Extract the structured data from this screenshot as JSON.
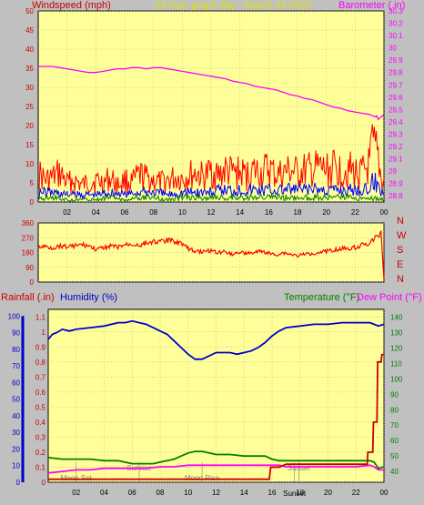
{
  "header": {
    "left_label": "Windspeed (mph)",
    "center_label": "24 hour graph day - March 03 2020",
    "right_label": "Barometer (.in)"
  },
  "colors": {
    "background": "#c0c0c0",
    "plot_bg": "#ffff99",
    "axis_dark": "#000000",
    "grid": "#a0a0a0",
    "wind_gust": "#ff0000",
    "wind_avg": "#0000ff",
    "wind_low": "#008000",
    "barometer": "#ff00ff",
    "direction": "#ff0000",
    "rainfall": "#cc0000",
    "humidity": "#0000cc",
    "temperature": "#008000",
    "dewpoint": "#ff00ff",
    "astro": "#808080",
    "left_red": "#cc0000",
    "left_blue": "#0000cc"
  },
  "chart_data": [
    {
      "type": "line",
      "name": "wind-barometer",
      "title": "24 hour graph day - March 03 2020",
      "ylabel": "Windspeed (mph)",
      "y2label": "Barometer (.in)",
      "x_ticks": [
        "02",
        "04",
        "06",
        "08",
        "10",
        "12",
        "14",
        "16",
        "18",
        "20",
        "22",
        "00"
      ],
      "x_range": [
        0,
        24
      ],
      "y_ticks": [
        0,
        5,
        10,
        15,
        20,
        25,
        30,
        35,
        40,
        45,
        50
      ],
      "y_range": [
        0,
        50
      ],
      "y2_ticks": [
        "28.8",
        "28.9",
        "29",
        "29.1",
        "29.2",
        "29.3",
        "29.4",
        "29.5",
        "29.6",
        "29.7",
        "29.8",
        "29.9",
        "30",
        "30.1",
        "30.2",
        "30.3"
      ],
      "y2_range": [
        28.75,
        30.3
      ],
      "grid": true,
      "series": [
        {
          "name": "Barometer (.in)",
          "axis": "right",
          "x": [
            0,
            0.5,
            1,
            1.5,
            2,
            2.5,
            3,
            3.5,
            4,
            4.5,
            5,
            5.5,
            6,
            6.5,
            7,
            7.5,
            8,
            8.5,
            9,
            9.5,
            10,
            10.5,
            11,
            11.5,
            12,
            12.5,
            13,
            13.5,
            14,
            14.5,
            15,
            15.5,
            16,
            16.5,
            17,
            17.5,
            18,
            18.5,
            19,
            19.5,
            20,
            20.5,
            21,
            21.5,
            22,
            22.5,
            23,
            23.2,
            23.4,
            23.5,
            23.6,
            23.8,
            24
          ],
          "y": [
            29.85,
            29.85,
            29.85,
            29.84,
            29.83,
            29.82,
            29.81,
            29.8,
            29.8,
            29.81,
            29.82,
            29.83,
            29.83,
            29.84,
            29.84,
            29.83,
            29.84,
            29.84,
            29.83,
            29.82,
            29.81,
            29.8,
            29.79,
            29.78,
            29.77,
            29.76,
            29.75,
            29.73,
            29.72,
            29.71,
            29.69,
            29.68,
            29.67,
            29.66,
            29.64,
            29.62,
            29.61,
            29.59,
            29.58,
            29.56,
            29.54,
            29.52,
            29.51,
            29.49,
            29.48,
            29.47,
            29.46,
            29.45,
            29.44,
            29.45,
            29.42,
            29.44,
            29.46
          ]
        },
        {
          "name": "gust",
          "axis": "left",
          "x": [
            0,
            0.5,
            1,
            1.5,
            2,
            2.5,
            3,
            3.5,
            4,
            4.5,
            5,
            5.5,
            6,
            6.5,
            7,
            7.5,
            8,
            8.5,
            9,
            9.5,
            10,
            10.5,
            11,
            11.5,
            12,
            12.5,
            13,
            13.5,
            14,
            14.5,
            15,
            15.5,
            16,
            16.5,
            17,
            17.5,
            18,
            18.5,
            19,
            19.5,
            20,
            20.5,
            21,
            21.5,
            22,
            22.5,
            23,
            23.2,
            23.4,
            23.6,
            23.8,
            24
          ],
          "y": [
            12,
            9,
            10,
            12,
            8,
            9,
            7,
            8,
            9,
            8,
            10,
            7,
            9,
            8,
            11,
            10,
            9,
            8,
            9,
            10,
            10,
            11,
            12,
            10,
            13,
            11,
            13,
            12,
            12,
            11,
            13,
            12,
            14,
            11,
            12,
            13,
            12,
            13,
            13,
            14,
            13,
            14,
            13,
            14,
            12,
            12,
            15,
            22,
            20,
            18,
            10,
            8
          ]
        },
        {
          "name": "average",
          "axis": "left",
          "x": [
            0,
            1,
            2,
            3,
            4,
            5,
            6,
            7,
            8,
            9,
            10,
            11,
            12,
            13,
            14,
            15,
            16,
            17,
            18,
            19,
            20,
            21,
            22,
            23,
            23.3,
            23.6,
            24
          ],
          "y": [
            4,
            4,
            3,
            3,
            3,
            4,
            3,
            4,
            4,
            3,
            4,
            4,
            4,
            5,
            5,
            5,
            5,
            5,
            5,
            5,
            5,
            5,
            5,
            5,
            9,
            6,
            4
          ]
        },
        {
          "name": "low",
          "axis": "left",
          "x": [
            0,
            1,
            2,
            3,
            4,
            5,
            6,
            7,
            8,
            9,
            10,
            11,
            12,
            13,
            14,
            15,
            16,
            17,
            18,
            19,
            20,
            21,
            22,
            23,
            24
          ],
          "y": [
            2,
            2,
            1,
            1,
            1,
            2,
            1,
            2,
            2,
            1,
            2,
            2,
            2,
            2,
            2,
            2,
            2,
            2,
            2,
            2,
            2,
            2,
            2,
            2,
            1
          ]
        }
      ]
    },
    {
      "type": "line",
      "name": "wind-direction",
      "y_ticks": [
        0,
        90,
        180,
        270,
        360
      ],
      "y_range": [
        0,
        360
      ],
      "x_range": [
        0,
        24
      ],
      "compass": [
        "N",
        "W",
        "S",
        "E",
        "N"
      ],
      "series": [
        {
          "name": "direction",
          "x": [
            0,
            0.5,
            1,
            1.5,
            2,
            2.5,
            3,
            3.5,
            4,
            4.5,
            5,
            5.5,
            6,
            6.5,
            7,
            7.5,
            8,
            8.5,
            9,
            9.5,
            10,
            10.5,
            11,
            11.5,
            12,
            12.5,
            13,
            13.5,
            14,
            14.5,
            15,
            15.5,
            16,
            16.5,
            17,
            17.5,
            18,
            18.5,
            19,
            19.5,
            20,
            20.5,
            21,
            21.5,
            22,
            22.5,
            23,
            23.3,
            23.6,
            23.8,
            24
          ],
          "y": [
            225,
            230,
            220,
            235,
            230,
            235,
            240,
            235,
            210,
            220,
            235,
            225,
            240,
            245,
            240,
            250,
            265,
            260,
            270,
            265,
            250,
            210,
            200,
            195,
            205,
            190,
            200,
            180,
            195,
            185,
            190,
            200,
            185,
            175,
            190,
            180,
            170,
            180,
            185,
            195,
            200,
            210,
            215,
            220,
            225,
            240,
            250,
            275,
            300,
            320,
            20
          ]
        }
      ]
    },
    {
      "type": "line",
      "name": "rain-humidity-temperature",
      "ylabel_left": "Rainfall (.in)",
      "ylabel_left2": "Humidity (%)",
      "ylabel_right": "Temperature (°F)",
      "ylabel_right2": "Dew Point (°F)",
      "x_ticks": [
        "02",
        "04",
        "06",
        "08",
        "10",
        "12",
        "14",
        "16",
        "18",
        "20",
        "22",
        "00"
      ],
      "x_range": [
        0,
        24
      ],
      "rain_ticks": [
        "0",
        "0.1",
        "0.2",
        "0.3",
        "0.4",
        "0.5",
        "0.6",
        "0.7",
        "0.8",
        "0.9",
        "1",
        "1.1"
      ],
      "rain_range": [
        0,
        1.15
      ],
      "humidity_ticks": [
        0,
        10,
        20,
        30,
        40,
        50,
        60,
        70,
        80,
        90,
        100
      ],
      "humidity_range": [
        0,
        104
      ],
      "temp_ticks": [
        40,
        50,
        60,
        70,
        80,
        90,
        100,
        110,
        120,
        130,
        140
      ],
      "temp_range": [
        33,
        145
      ],
      "astro_labels": [
        {
          "label": "Moon Set",
          "x": 2.0,
          "row": "bottom"
        },
        {
          "label": "Sunrise",
          "x": 6.5,
          "row": "top"
        },
        {
          "label": "Moon Rise",
          "x": 11.0,
          "row": "bottom"
        },
        {
          "label": "Sunset",
          "x": 17.9,
          "row": "top"
        },
        {
          "label": "Sunset",
          "x": 17.6,
          "row": "axis"
        }
      ],
      "series": [
        {
          "name": "Humidity (%)",
          "axis": "humidity",
          "x": [
            0,
            0.3,
            0.6,
            1,
            1.5,
            2,
            3,
            4,
            5,
            5.5,
            6,
            6.5,
            7,
            7.5,
            8,
            8.5,
            9,
            9.5,
            10,
            10.5,
            11,
            11.5,
            12,
            12.5,
            13,
            13.5,
            14,
            14.5,
            15,
            15.5,
            16,
            16.5,
            17,
            18,
            19,
            20,
            21,
            22,
            22.5,
            23,
            23.3,
            23.6,
            24
          ],
          "y": [
            86,
            89,
            90,
            92,
            91,
            92,
            93,
            94,
            96,
            96,
            97,
            96,
            95,
            93,
            91,
            89,
            85,
            81,
            77,
            74,
            74,
            76,
            78,
            78,
            78,
            77,
            78,
            79,
            81,
            84,
            88,
            91,
            93,
            94,
            95,
            95,
            96,
            96,
            96,
            96,
            95,
            94,
            95
          ]
        },
        {
          "name": "Temperature (°F)",
          "axis": "temp",
          "x": [
            0,
            1,
            2,
            3,
            4,
            5,
            6,
            7,
            7.5,
            8,
            8.5,
            9,
            9.5,
            10,
            10.5,
            11,
            11.5,
            12,
            13,
            14,
            15,
            15.5,
            16,
            16.5,
            17,
            17.5,
            18,
            19,
            20,
            21,
            22,
            22.5,
            23,
            23.3,
            23.6,
            24
          ],
          "y": [
            49,
            48,
            48,
            48,
            47,
            47,
            45,
            45,
            45,
            46,
            47,
            48,
            50,
            52,
            53,
            53,
            52,
            51,
            51,
            50,
            50,
            50,
            48,
            47,
            47,
            47,
            47,
            47,
            47,
            47,
            47,
            47,
            47,
            46,
            42,
            43
          ]
        },
        {
          "name": "Dew Point (°F)",
          "axis": "temp",
          "x": [
            0,
            1,
            2,
            3,
            4,
            5,
            6,
            7,
            8,
            9,
            10,
            11,
            12,
            13,
            14,
            15,
            16,
            16.5,
            17,
            18,
            19,
            20,
            21,
            22,
            23,
            23.3,
            23.6,
            24
          ],
          "y": [
            39,
            40,
            41,
            41,
            42,
            42,
            42,
            42,
            43,
            43,
            44,
            44,
            44,
            44,
            44,
            44,
            44,
            44,
            43,
            43,
            43,
            43,
            43,
            43,
            44,
            43,
            41,
            41
          ]
        },
        {
          "name": "Rainfall (.in)",
          "axis": "rain",
          "x": [
            0,
            15.8,
            15.9,
            16.5,
            17,
            18,
            19,
            20,
            21,
            22,
            22.8,
            22.85,
            23.2,
            23.25,
            23.5,
            23.55,
            23.8,
            23.85,
            24
          ],
          "y": [
            0.02,
            0.02,
            0.1,
            0.1,
            0.12,
            0.12,
            0.12,
            0.12,
            0.12,
            0.12,
            0.12,
            0.2,
            0.2,
            0.4,
            0.4,
            0.8,
            0.8,
            0.85,
            0.85
          ]
        }
      ]
    }
  ]
}
